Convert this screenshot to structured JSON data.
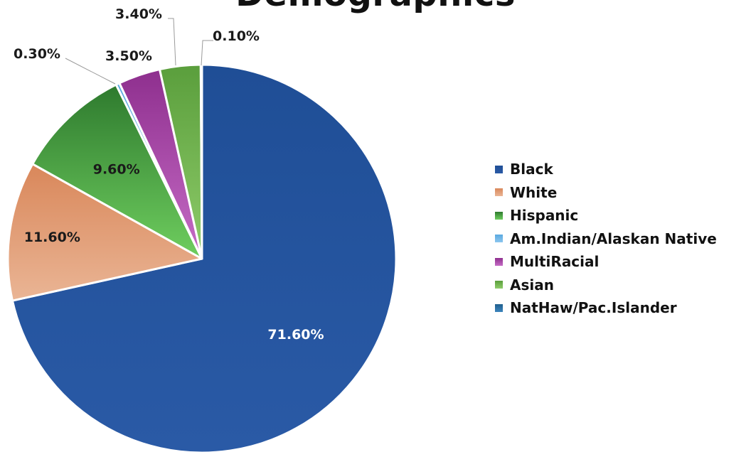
{
  "chart_data": {
    "type": "pie",
    "title": "Demographics",
    "start_angle_deg": 0,
    "direction": "clockwise",
    "legend_position": "right",
    "slices": [
      {
        "label": "Black",
        "value": 71.6,
        "display": "71.60%",
        "color": "#1f4e96",
        "color_light": "#2a5aa6",
        "label_color": "#ffffff",
        "label_placement": "inside"
      },
      {
        "label": "White",
        "value": 11.6,
        "display": "11.60%",
        "color": "#d9875a",
        "color_light": "#eab595",
        "label_color": "#1a1a1a",
        "label_placement": "inside"
      },
      {
        "label": "Hispanic",
        "value": 9.6,
        "display": "9.60%",
        "color": "#2e7a2e",
        "color_light": "#6fce5f",
        "label_color": "#1a1a1a",
        "label_placement": "inside"
      },
      {
        "label": "Am.Indian/Alaskan Native",
        "value": 0.3,
        "display": "0.30%",
        "color": "#5aa9e0",
        "color_light": "#8cc6ee",
        "label_color": "#1a1a1a",
        "label_placement": "outside"
      },
      {
        "label": "MultiRacial",
        "value": 3.5,
        "display": "3.50%",
        "color": "#8e2f8e",
        "color_light": "#c66cc6",
        "label_color": "#1a1a1a",
        "label_placement": "outside"
      },
      {
        "label": "Asian",
        "value": 3.4,
        "display": "3.40%",
        "color": "#5a9e3c",
        "color_light": "#8fcc6a",
        "label_color": "#1a1a1a",
        "label_placement": "outside"
      },
      {
        "label": "NatHaw/Pac.Islander",
        "value": 0.1,
        "display": "0.10%",
        "color": "#1f5f8e",
        "color_light": "#3d85bd",
        "label_color": "#1a1a1a",
        "label_placement": "outside"
      }
    ]
  }
}
